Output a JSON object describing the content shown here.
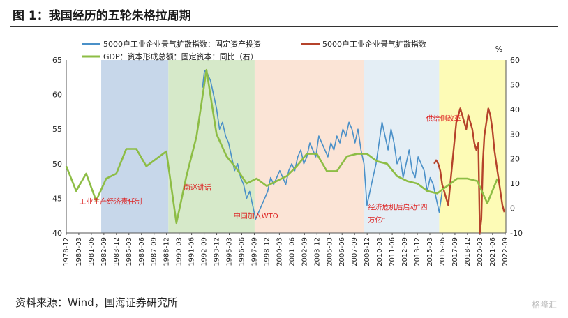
{
  "title": "图 1：我国经历的五轮朱格拉周期",
  "source": "资料来源：Wind，国海证券研究所",
  "watermark": "格隆汇",
  "chart_data": {
    "type": "line",
    "left_axis": {
      "min": 40,
      "max": 65,
      "ticks": [
        40,
        45,
        50,
        55,
        60,
        65
      ]
    },
    "right_axis": {
      "min": -10,
      "max": 60,
      "ticks": [
        -10,
        0,
        10,
        20,
        30,
        40,
        50,
        60
      ],
      "unit": "%"
    },
    "x_range": [
      1978.92,
      2022.75
    ],
    "x_ticks": [
      "1978-12",
      "1980-03",
      "1981-06",
      "1982-09",
      "1983-12",
      "1985-03",
      "1986-06",
      "1987-09",
      "1988-12",
      "1990-03",
      "1991-06",
      "1992-09",
      "1993-12",
      "1995-03",
      "1996-06",
      "1997-09",
      "1998-12",
      "2000-03",
      "2001-06",
      "2002-09",
      "2003-12",
      "2005-03",
      "2006-06",
      "2007-09",
      "2008-12",
      "2010-03",
      "2011-06",
      "2012-09",
      "2013-12",
      "2015-03",
      "2016-06",
      "2017-09",
      "2018-12",
      "2020-03",
      "2021-06",
      "2022-09"
    ],
    "shaded_regions": [
      {
        "start": 1982.4,
        "end": 1989.1,
        "color": "#c7d7ea"
      },
      {
        "start": 1989.1,
        "end": 1997.7,
        "color": "#d6e9c9"
      },
      {
        "start": 1997.7,
        "end": 2008.6,
        "color": "#fbe4d6"
      },
      {
        "start": 2008.6,
        "end": 2016.1,
        "color": "#e4eef5"
      },
      {
        "start": 2016.1,
        "end": 2022.75,
        "color": "#fdfbb6"
      }
    ],
    "series": [
      {
        "name": "5000户工业企业景气扩散指数：固定资产投资",
        "axis": "left",
        "color": "#4a90c8",
        "x": [
          1992.5,
          1992.7,
          1993.0,
          1993.3,
          1993.6,
          1993.9,
          1994.2,
          1994.5,
          1994.8,
          1995.1,
          1995.4,
          1995.7,
          1996.0,
          1996.3,
          1996.6,
          1996.9,
          1997.2,
          1997.5,
          1997.8,
          1998.1,
          1998.4,
          1998.7,
          1999.0,
          1999.3,
          1999.6,
          1999.9,
          2000.2,
          2000.5,
          2000.8,
          2001.1,
          2001.4,
          2001.7,
          2002.0,
          2002.3,
          2002.6,
          2002.9,
          2003.2,
          2003.5,
          2003.8,
          2004.1,
          2004.4,
          2004.7,
          2005.0,
          2005.3,
          2005.6,
          2005.9,
          2006.2,
          2006.5,
          2006.8,
          2007.1,
          2007.4,
          2007.7,
          2008.0,
          2008.3,
          2008.6,
          2008.9,
          2009.2,
          2009.5,
          2009.8,
          2010.1,
          2010.4,
          2010.7,
          2011.0,
          2011.3,
          2011.6,
          2011.9,
          2012.2,
          2012.5,
          2012.8,
          2013.1,
          2013.4,
          2013.7,
          2014.0,
          2014.3,
          2014.6,
          2014.9,
          2015.2,
          2015.5,
          2015.8,
          2016.1,
          2016.4
        ],
        "values": [
          61,
          63.5,
          63,
          62,
          60,
          58,
          55,
          56,
          54,
          53,
          51,
          49,
          50,
          48,
          47,
          45,
          46,
          44,
          42,
          43,
          44,
          45,
          46,
          48,
          47,
          48,
          49,
          48,
          47,
          49,
          50,
          49,
          51,
          52,
          50,
          51,
          53,
          52,
          51,
          54,
          53,
          52,
          51,
          53,
          52,
          54,
          53,
          55,
          54,
          56,
          55,
          53,
          55,
          52,
          50,
          44,
          46,
          48,
          50,
          53,
          56,
          54,
          52,
          55,
          53,
          50,
          51,
          48,
          50,
          52,
          49,
          48,
          51,
          50,
          49,
          46,
          48,
          47,
          45,
          43,
          46
        ]
      },
      {
        "name": "5000户工业企业景气扩散指数",
        "axis": "left",
        "color": "#b5432b",
        "x": [
          2015.6,
          2015.8,
          2016.0,
          2016.2,
          2016.4,
          2016.6,
          2016.8,
          2017.0,
          2017.2,
          2017.4,
          2017.6,
          2017.8,
          2018.0,
          2018.2,
          2018.4,
          2018.6,
          2018.8,
          2019.0,
          2019.2,
          2019.4,
          2019.6,
          2019.8,
          2020.0,
          2020.15,
          2020.3,
          2020.45,
          2020.6,
          2020.8,
          2021.0,
          2021.2,
          2021.4,
          2021.6,
          2021.8,
          2022.0,
          2022.2,
          2022.4,
          2022.6
        ],
        "values": [
          50,
          50.5,
          50,
          49,
          47,
          46,
          45,
          44,
          47,
          50,
          53,
          56,
          57,
          58,
          57,
          56,
          55,
          57,
          56,
          55,
          53,
          52,
          53,
          40,
          42,
          50,
          54,
          56,
          58,
          57,
          55,
          52,
          50,
          48,
          46,
          44,
          43
        ]
      },
      {
        "name": "GDP：资本形成总额：固定资本：同比（右）",
        "axis": "right",
        "color": "#8dbd45",
        "x": [
          1978.92,
          1979.9,
          1980.9,
          1981.9,
          1982.9,
          1983.9,
          1984.9,
          1985.9,
          1986.9,
          1987.9,
          1988.9,
          1989.9,
          1990.9,
          1991.9,
          1992.9,
          1993.9,
          1994.9,
          1995.9,
          1996.9,
          1997.9,
          1998.9,
          1999.9,
          2000.9,
          2001.9,
          2002.9,
          2003.9,
          2004.9,
          2005.9,
          2006.9,
          2007.9,
          2008.9,
          2009.9,
          2010.9,
          2011.9,
          2012.9,
          2013.9,
          2014.9,
          2015.9,
          2016.9,
          2017.9,
          2018.9,
          2019.9,
          2020.9,
          2021.9
        ],
        "values": [
          17,
          7,
          14,
          3,
          12,
          14,
          24,
          24,
          17,
          20,
          23,
          -6,
          13,
          29,
          56,
          30,
          21,
          16,
          10,
          12,
          9,
          11,
          13,
          17,
          22,
          22,
          15,
          15,
          21,
          22,
          22,
          19,
          18,
          13,
          11,
          10,
          7,
          6,
          9,
          12,
          12,
          11,
          2,
          12
        ]
      }
    ],
    "legend": [
      {
        "label": "5000户工业企业景气扩散指数：固定资产投资",
        "color": "#4a90c8"
      },
      {
        "label": "5000户工业企业景气扩散指数",
        "color": "#b5432b"
      },
      {
        "label": "GDP：资本形成总额：固定资本：同比（右）",
        "color": "#8dbd45"
      }
    ],
    "annotations": [
      {
        "text": "工业生产经济责任制",
        "x": 1980.2,
        "y": 44.2
      },
      {
        "text": "南巡讲话",
        "x": 1990.6,
        "y": 46.2
      },
      {
        "text": "中国加入WTO",
        "x": 1995.6,
        "y": 42.1
      },
      {
        "text": "经济危机后启动“四",
        "x": 2009.0,
        "y": 43.4
      },
      {
        "text": "万亿”",
        "x": 2009.0,
        "y": 41.5
      },
      {
        "text": "供给侧改革",
        "x": 2014.8,
        "y": 56.2
      }
    ]
  }
}
